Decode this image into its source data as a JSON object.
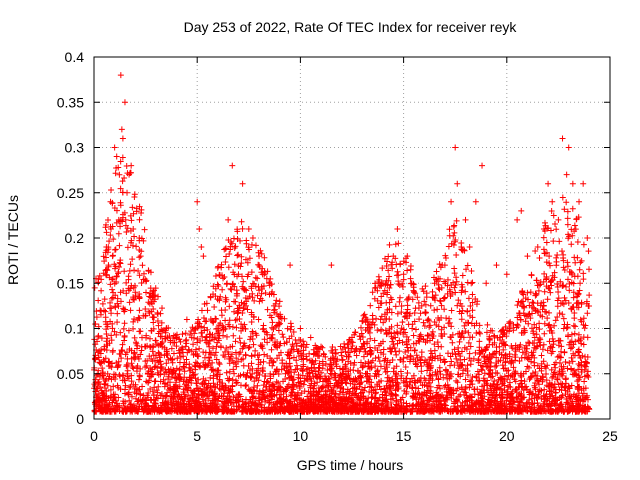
{
  "chart_data": {
    "type": "scatter",
    "title": "Day 253 of 2022, Rate Of TEC Index for receiver reyk",
    "xlabel": "GPS time / hours",
    "ylabel": "ROTI / TECUs",
    "xlim": [
      0,
      25
    ],
    "ylim": [
      0,
      0.4
    ],
    "x_ticks": [
      "0",
      "5",
      "10",
      "15",
      "20",
      "25"
    ],
    "y_ticks": [
      "0",
      "0.05",
      "0.1",
      "0.15",
      "0.2",
      "0.25",
      "0.3",
      "0.35",
      "0.4"
    ],
    "grid": true,
    "marker": "+",
    "color": "#ff0000",
    "series": [
      {
        "values_description": "ROTI samples",
        "points": [
          [
            0.1,
            0.02
          ],
          [
            0.2,
            0.05
          ],
          [
            0.3,
            0.12
          ],
          [
            0.5,
            0.08
          ],
          [
            0.6,
            0.19
          ],
          [
            0.7,
            0.17
          ],
          [
            0.8,
            0.24
          ],
          [
            0.9,
            0.18
          ],
          [
            1.0,
            0.3
          ],
          [
            1.1,
            0.29
          ],
          [
            1.2,
            0.22
          ],
          [
            1.3,
            0.38
          ],
          [
            1.35,
            0.32
          ],
          [
            1.4,
            0.31
          ],
          [
            1.5,
            0.35
          ],
          [
            1.6,
            0.25
          ],
          [
            1.7,
            0.27
          ],
          [
            1.8,
            0.28
          ],
          [
            1.9,
            0.21
          ],
          [
            2.0,
            0.14
          ],
          [
            2.2,
            0.12
          ],
          [
            2.5,
            0.08
          ],
          [
            3.0,
            0.07
          ],
          [
            3.5,
            0.1
          ],
          [
            4.0,
            0.09
          ],
          [
            4.5,
            0.11
          ],
          [
            5.0,
            0.24
          ],
          [
            5.1,
            0.21
          ],
          [
            5.2,
            0.19
          ],
          [
            5.3,
            0.18
          ],
          [
            5.5,
            0.12
          ],
          [
            6.0,
            0.1
          ],
          [
            6.5,
            0.22
          ],
          [
            6.7,
            0.28
          ],
          [
            7.0,
            0.16
          ],
          [
            7.2,
            0.26
          ],
          [
            7.5,
            0.21
          ],
          [
            7.7,
            0.2
          ],
          [
            8.0,
            0.17
          ],
          [
            8.5,
            0.15
          ],
          [
            9.0,
            0.13
          ],
          [
            9.5,
            0.17
          ],
          [
            10.0,
            0.1
          ],
          [
            10.5,
            0.09
          ],
          [
            11.0,
            0.08
          ],
          [
            11.5,
            0.17
          ],
          [
            12.0,
            0.07
          ],
          [
            12.5,
            0.09
          ],
          [
            13.0,
            0.08
          ],
          [
            13.5,
            0.14
          ],
          [
            14.0,
            0.15
          ],
          [
            14.5,
            0.18
          ],
          [
            14.7,
            0.21
          ],
          [
            15.0,
            0.16
          ],
          [
            15.5,
            0.14
          ],
          [
            16.0,
            0.13
          ],
          [
            16.5,
            0.15
          ],
          [
            17.0,
            0.17
          ],
          [
            17.3,
            0.24
          ],
          [
            17.5,
            0.3
          ],
          [
            17.6,
            0.26
          ],
          [
            17.8,
            0.19
          ],
          [
            18.0,
            0.22
          ],
          [
            18.2,
            0.19
          ],
          [
            18.5,
            0.24
          ],
          [
            18.8,
            0.28
          ],
          [
            19.0,
            0.15
          ],
          [
            19.5,
            0.17
          ],
          [
            20.0,
            0.16
          ],
          [
            20.5,
            0.22
          ],
          [
            20.7,
            0.23
          ],
          [
            21.0,
            0.18
          ],
          [
            21.5,
            0.19
          ],
          [
            21.8,
            0.21
          ],
          [
            22.0,
            0.26
          ],
          [
            22.2,
            0.24
          ],
          [
            22.5,
            0.22
          ],
          [
            22.7,
            0.31
          ],
          [
            22.9,
            0.27
          ],
          [
            23.0,
            0.3
          ],
          [
            23.2,
            0.26
          ],
          [
            23.5,
            0.24
          ],
          [
            23.7,
            0.26
          ],
          [
            23.9,
            0.2
          ]
        ]
      }
    ]
  }
}
